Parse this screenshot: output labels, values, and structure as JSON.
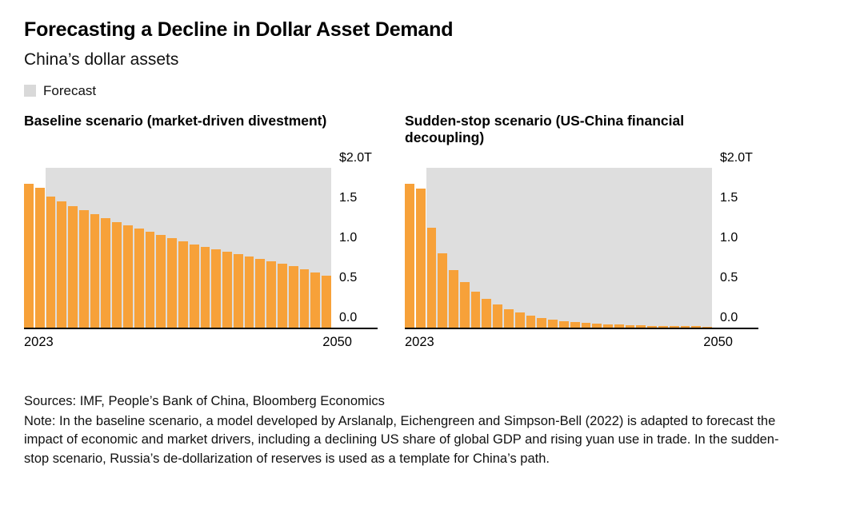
{
  "header": {
    "title": "Forecasting a Decline in Dollar Asset Demand",
    "subtitle": "China’s dollar assets"
  },
  "legend": {
    "forecast_label": "Forecast"
  },
  "colors": {
    "bar": "#F7A139",
    "forecast_swatch": "#D9D9D9",
    "forecast_region": "#DEDEDE",
    "axis": "#000000"
  },
  "chart_data": [
    {
      "type": "bar",
      "title": "Baseline scenario (market-driven divestment)",
      "unit": "trillions of US dollars",
      "x": [
        2023,
        2024,
        2025,
        2026,
        2027,
        2028,
        2029,
        2030,
        2031,
        2032,
        2033,
        2034,
        2035,
        2036,
        2037,
        2038,
        2039,
        2040,
        2041,
        2042,
        2043,
        2044,
        2045,
        2046,
        2047,
        2048,
        2049,
        2050
      ],
      "values": [
        1.8,
        1.75,
        1.64,
        1.58,
        1.52,
        1.47,
        1.42,
        1.37,
        1.32,
        1.28,
        1.24,
        1.2,
        1.16,
        1.12,
        1.08,
        1.04,
        1.01,
        0.98,
        0.95,
        0.92,
        0.89,
        0.86,
        0.83,
        0.8,
        0.77,
        0.73,
        0.69,
        0.65
      ],
      "ylim": [
        0,
        2.0
      ],
      "y_tick_labels": [
        "$2.0T",
        "1.5",
        "1.0",
        "0.5",
        "0.0"
      ],
      "y_tick_values": [
        2.0,
        1.5,
        1.0,
        0.5,
        0.0
      ],
      "x_tick_labels": [
        "2023",
        "2050"
      ],
      "forecast_start_year": 2025,
      "grid": false,
      "legend_position": "top-left"
    },
    {
      "type": "bar",
      "title": "Sudden-stop scenario (US-China financial decoupling)",
      "unit": "trillions of US dollars",
      "x": [
        2023,
        2024,
        2025,
        2026,
        2027,
        2028,
        2029,
        2030,
        2031,
        2032,
        2033,
        2034,
        2035,
        2036,
        2037,
        2038,
        2039,
        2040,
        2041,
        2042,
        2043,
        2044,
        2045,
        2046,
        2047,
        2048,
        2049,
        2050
      ],
      "values": [
        1.8,
        1.74,
        1.25,
        0.93,
        0.72,
        0.57,
        0.45,
        0.36,
        0.29,
        0.23,
        0.19,
        0.15,
        0.12,
        0.1,
        0.08,
        0.07,
        0.06,
        0.05,
        0.04,
        0.035,
        0.03,
        0.025,
        0.02,
        0.018,
        0.015,
        0.013,
        0.011,
        0.01
      ],
      "ylim": [
        0,
        2.0
      ],
      "y_tick_labels": [
        "$2.0T",
        "1.5",
        "1.0",
        "0.5",
        "0.0"
      ],
      "y_tick_values": [
        2.0,
        1.5,
        1.0,
        0.5,
        0.0
      ],
      "x_tick_labels": [
        "2023",
        "2050"
      ],
      "forecast_start_year": 2025,
      "grid": false,
      "legend_position": "top-left"
    }
  ],
  "footer": {
    "sources": "Sources: IMF, People’s Bank of China, Bloomberg Economics",
    "note": "Note: In the baseline scenario, a model developed by Arslanalp, Eichengreen and Simpson-Bell (2022) is adapted to forecast the impact of economic and market drivers, including a declining US share of global GDP and rising yuan use in trade. In the sudden-stop scenario, Russia’s de-dollarization of reserves is used as a template for China’s path."
  }
}
